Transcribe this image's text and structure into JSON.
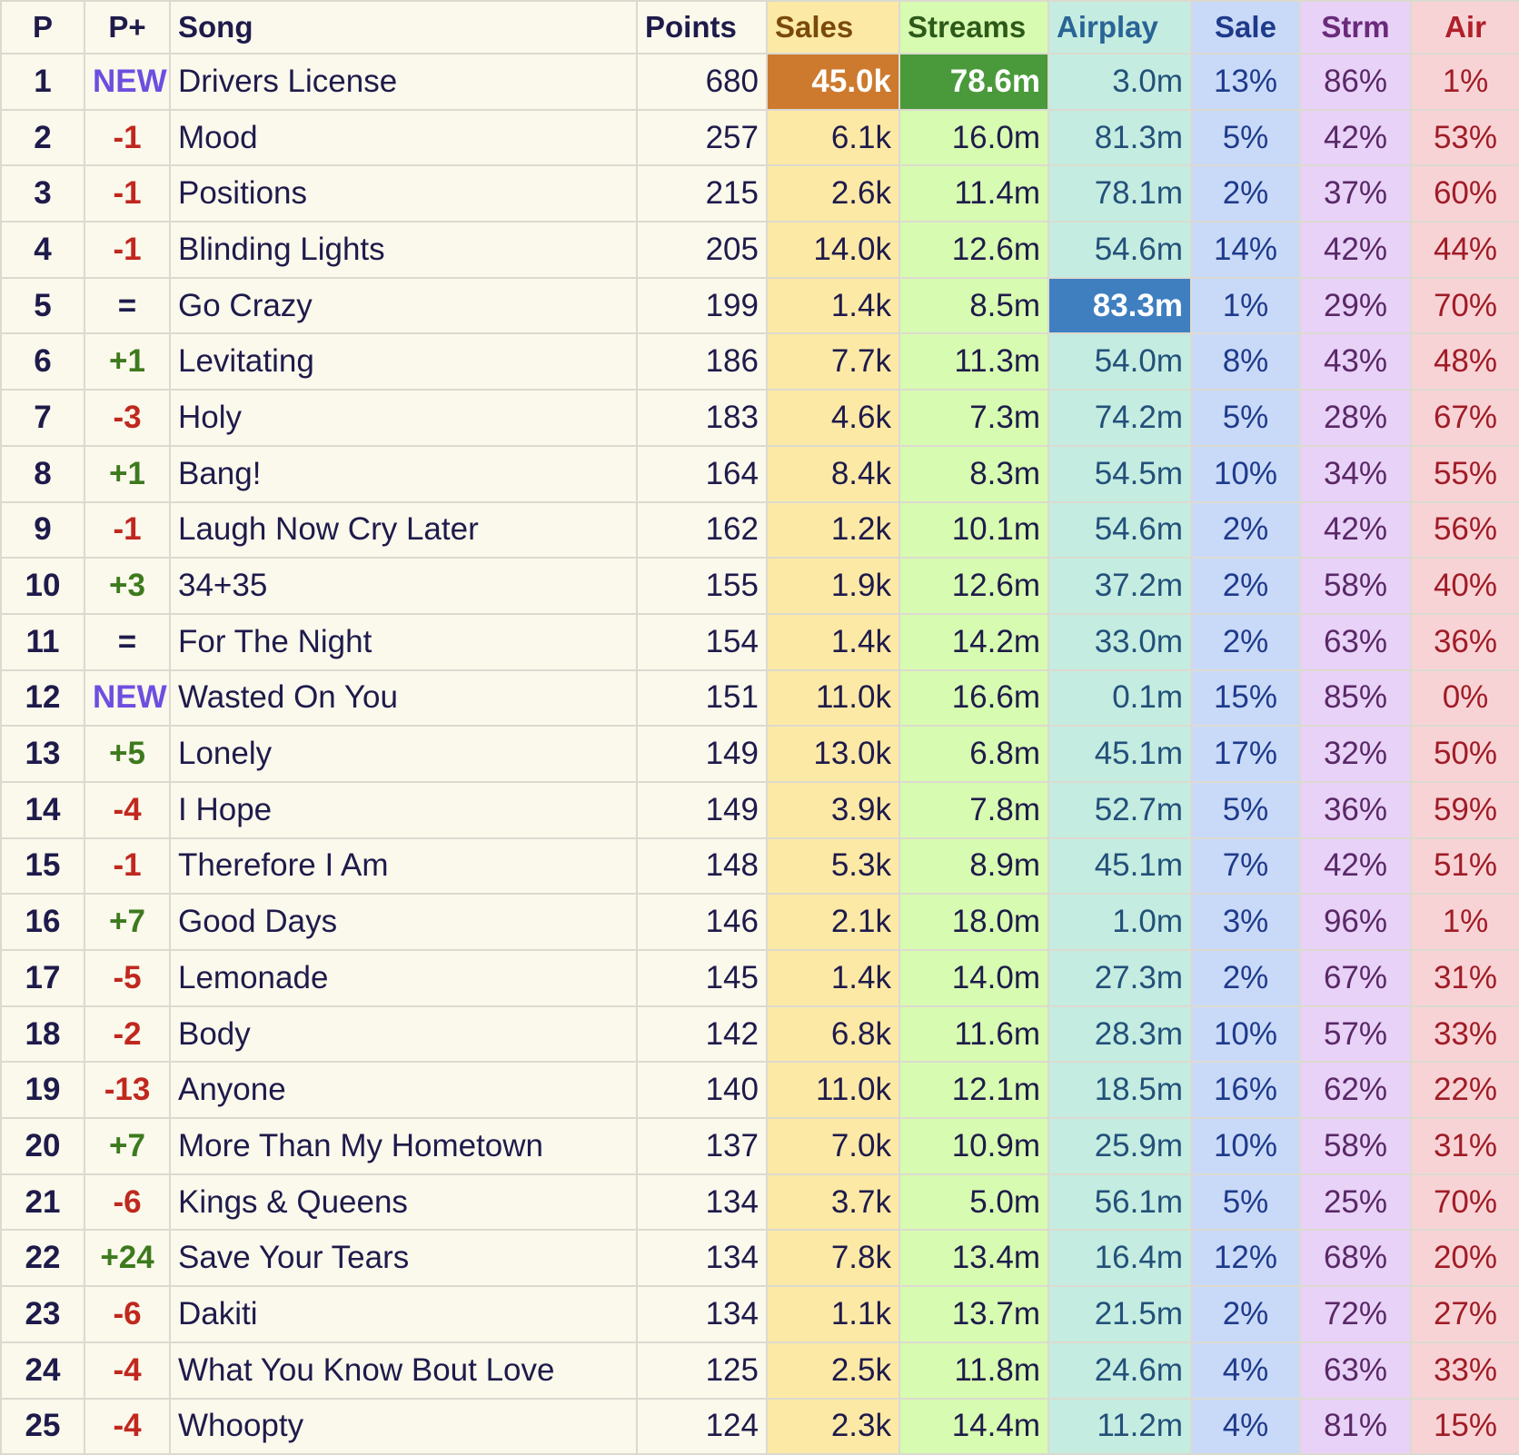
{
  "headers": {
    "pos": "P",
    "change": "P+",
    "song": "Song",
    "points": "Points",
    "sales": "Sales",
    "streams": "Streams",
    "airplay": "Airplay",
    "sale_pct": "Sale",
    "strm_pct": "Strm",
    "air_pct": "Air"
  },
  "highlights": {
    "sales_max_row": 0,
    "streams_max_row": 0,
    "airplay_max_row": 4
  },
  "colors": {
    "new": "#6d4ee0",
    "up": "#3d7a1e",
    "down": "#c0281e",
    "sales_highlight": "#cd7a2e",
    "streams_highlight": "#4a9a3c",
    "airplay_highlight": "#3f7fc0"
  },
  "rows": [
    {
      "pos": "1",
      "change": "NEW",
      "song": "Drivers License",
      "points": "680",
      "sales": "45.0k",
      "streams": "78.6m",
      "airplay": "3.0m",
      "sale_pct": "13%",
      "strm_pct": "86%",
      "air_pct": "1%"
    },
    {
      "pos": "2",
      "change": "-1",
      "song": "Mood",
      "points": "257",
      "sales": "6.1k",
      "streams": "16.0m",
      "airplay": "81.3m",
      "sale_pct": "5%",
      "strm_pct": "42%",
      "air_pct": "53%"
    },
    {
      "pos": "3",
      "change": "-1",
      "song": "Positions",
      "points": "215",
      "sales": "2.6k",
      "streams": "11.4m",
      "airplay": "78.1m",
      "sale_pct": "2%",
      "strm_pct": "37%",
      "air_pct": "60%"
    },
    {
      "pos": "4",
      "change": "-1",
      "song": "Blinding Lights",
      "points": "205",
      "sales": "14.0k",
      "streams": "12.6m",
      "airplay": "54.6m",
      "sale_pct": "14%",
      "strm_pct": "42%",
      "air_pct": "44%"
    },
    {
      "pos": "5",
      "change": "=",
      "song": "Go Crazy",
      "points": "199",
      "sales": "1.4k",
      "streams": "8.5m",
      "airplay": "83.3m",
      "sale_pct": "1%",
      "strm_pct": "29%",
      "air_pct": "70%"
    },
    {
      "pos": "6",
      "change": "+1",
      "song": "Levitating",
      "points": "186",
      "sales": "7.7k",
      "streams": "11.3m",
      "airplay": "54.0m",
      "sale_pct": "8%",
      "strm_pct": "43%",
      "air_pct": "48%"
    },
    {
      "pos": "7",
      "change": "-3",
      "song": "Holy",
      "points": "183",
      "sales": "4.6k",
      "streams": "7.3m",
      "airplay": "74.2m",
      "sale_pct": "5%",
      "strm_pct": "28%",
      "air_pct": "67%"
    },
    {
      "pos": "8",
      "change": "+1",
      "song": "Bang!",
      "points": "164",
      "sales": "8.4k",
      "streams": "8.3m",
      "airplay": "54.5m",
      "sale_pct": "10%",
      "strm_pct": "34%",
      "air_pct": "55%"
    },
    {
      "pos": "9",
      "change": "-1",
      "song": "Laugh Now Cry Later",
      "points": "162",
      "sales": "1.2k",
      "streams": "10.1m",
      "airplay": "54.6m",
      "sale_pct": "2%",
      "strm_pct": "42%",
      "air_pct": "56%"
    },
    {
      "pos": "10",
      "change": "+3",
      "song": "34+35",
      "points": "155",
      "sales": "1.9k",
      "streams": "12.6m",
      "airplay": "37.2m",
      "sale_pct": "2%",
      "strm_pct": "58%",
      "air_pct": "40%"
    },
    {
      "pos": "11",
      "change": "=",
      "song": "For The Night",
      "points": "154",
      "sales": "1.4k",
      "streams": "14.2m",
      "airplay": "33.0m",
      "sale_pct": "2%",
      "strm_pct": "63%",
      "air_pct": "36%"
    },
    {
      "pos": "12",
      "change": "NEW",
      "song": "Wasted On You",
      "points": "151",
      "sales": "11.0k",
      "streams": "16.6m",
      "airplay": "0.1m",
      "sale_pct": "15%",
      "strm_pct": "85%",
      "air_pct": "0%"
    },
    {
      "pos": "13",
      "change": "+5",
      "song": "Lonely",
      "points": "149",
      "sales": "13.0k",
      "streams": "6.8m",
      "airplay": "45.1m",
      "sale_pct": "17%",
      "strm_pct": "32%",
      "air_pct": "50%"
    },
    {
      "pos": "14",
      "change": "-4",
      "song": "I Hope",
      "points": "149",
      "sales": "3.9k",
      "streams": "7.8m",
      "airplay": "52.7m",
      "sale_pct": "5%",
      "strm_pct": "36%",
      "air_pct": "59%"
    },
    {
      "pos": "15",
      "change": "-1",
      "song": "Therefore I Am",
      "points": "148",
      "sales": "5.3k",
      "streams": "8.9m",
      "airplay": "45.1m",
      "sale_pct": "7%",
      "strm_pct": "42%",
      "air_pct": "51%"
    },
    {
      "pos": "16",
      "change": "+7",
      "song": "Good Days",
      "points": "146",
      "sales": "2.1k",
      "streams": "18.0m",
      "airplay": "1.0m",
      "sale_pct": "3%",
      "strm_pct": "96%",
      "air_pct": "1%"
    },
    {
      "pos": "17",
      "change": "-5",
      "song": "Lemonade",
      "points": "145",
      "sales": "1.4k",
      "streams": "14.0m",
      "airplay": "27.3m",
      "sale_pct": "2%",
      "strm_pct": "67%",
      "air_pct": "31%"
    },
    {
      "pos": "18",
      "change": "-2",
      "song": "Body",
      "points": "142",
      "sales": "6.8k",
      "streams": "11.6m",
      "airplay": "28.3m",
      "sale_pct": "10%",
      "strm_pct": "57%",
      "air_pct": "33%"
    },
    {
      "pos": "19",
      "change": "-13",
      "song": "Anyone",
      "points": "140",
      "sales": "11.0k",
      "streams": "12.1m",
      "airplay": "18.5m",
      "sale_pct": "16%",
      "strm_pct": "62%",
      "air_pct": "22%"
    },
    {
      "pos": "20",
      "change": "+7",
      "song": "More Than My Hometown",
      "points": "137",
      "sales": "7.0k",
      "streams": "10.9m",
      "airplay": "25.9m",
      "sale_pct": "10%",
      "strm_pct": "58%",
      "air_pct": "31%"
    },
    {
      "pos": "21",
      "change": "-6",
      "song": "Kings & Queens",
      "points": "134",
      "sales": "3.7k",
      "streams": "5.0m",
      "airplay": "56.1m",
      "sale_pct": "5%",
      "strm_pct": "25%",
      "air_pct": "70%"
    },
    {
      "pos": "22",
      "change": "+24",
      "song": "Save Your Tears",
      "points": "134",
      "sales": "7.8k",
      "streams": "13.4m",
      "airplay": "16.4m",
      "sale_pct": "12%",
      "strm_pct": "68%",
      "air_pct": "20%"
    },
    {
      "pos": "23",
      "change": "-6",
      "song": "Dakiti",
      "points": "134",
      "sales": "1.1k",
      "streams": "13.7m",
      "airplay": "21.5m",
      "sale_pct": "2%",
      "strm_pct": "72%",
      "air_pct": "27%"
    },
    {
      "pos": "24",
      "change": "-4",
      "song": "What You Know Bout Love",
      "points": "125",
      "sales": "2.5k",
      "streams": "11.8m",
      "airplay": "24.6m",
      "sale_pct": "4%",
      "strm_pct": "63%",
      "air_pct": "33%"
    },
    {
      "pos": "25",
      "change": "-4",
      "song": "Whoopty",
      "points": "124",
      "sales": "2.3k",
      "streams": "14.4m",
      "airplay": "11.2m",
      "sale_pct": "4%",
      "strm_pct": "81%",
      "air_pct": "15%"
    }
  ]
}
